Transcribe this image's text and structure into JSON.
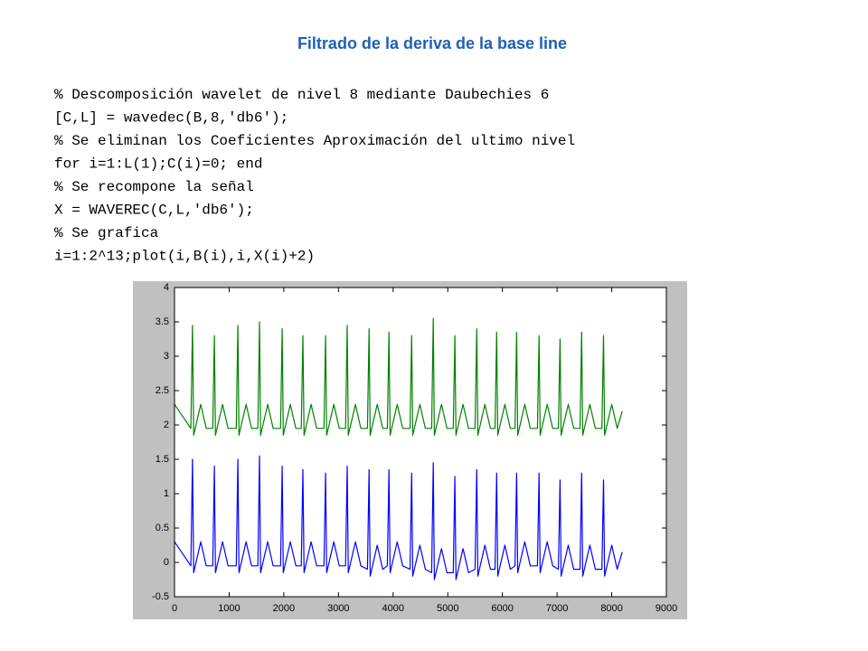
{
  "title": "Filtrado de la deriva de la base line",
  "code": [
    "% Descomposición wavelet de nivel 8 mediante Daubechies 6",
    "[C,L] = wavedec(B,8,'db6');",
    "% Se eliminan los Coeficientes Aproximación del ultimo nivel",
    "for i=1:L(1);C(i)=0; end",
    "% Se recompone la señal",
    "X = WAVEREC(C,L,'db6');",
    "% Se grafica",
    "i=1:2^13;plot(i,B(i),i,X(i)+2)"
  ],
  "chart_data": {
    "type": "line",
    "x": [
      0,
      300,
      330,
      350,
      480,
      580,
      700,
      730,
      750,
      880,
      980,
      1130,
      1160,
      1180,
      1310,
      1410,
      1525,
      1555,
      1575,
      1705,
      1805,
      1940,
      1970,
      1990,
      2120,
      2220,
      2320,
      2350,
      2370,
      2500,
      2600,
      2735,
      2765,
      2785,
      2915,
      3015,
      3130,
      3160,
      3180,
      3310,
      3410,
      3530,
      3560,
      3580,
      3710,
      3810,
      3895,
      3925,
      3945,
      4075,
      4175,
      4310,
      4340,
      4360,
      4490,
      4590,
      4705,
      4735,
      4755,
      4885,
      4985,
      5100,
      5130,
      5150,
      5280,
      5380,
      5500,
      5530,
      5550,
      5680,
      5780,
      5865,
      5895,
      5915,
      6045,
      6145,
      6230,
      6260,
      6280,
      6410,
      6510,
      6640,
      6670,
      6690,
      6820,
      6920,
      7025,
      7055,
      7075,
      7205,
      7305,
      7420,
      7450,
      7470,
      7600,
      7700,
      7820,
      7850,
      7870,
      8000,
      8100,
      8192
    ],
    "series": [
      {
        "color": "#008000",
        "values": [
          2.3,
          1.95,
          3.45,
          1.85,
          2.3,
          1.95,
          1.95,
          3.3,
          1.85,
          2.3,
          1.95,
          1.95,
          3.45,
          1.85,
          2.3,
          1.95,
          1.95,
          3.5,
          1.85,
          2.3,
          1.95,
          1.95,
          3.4,
          1.85,
          2.3,
          1.95,
          1.95,
          3.3,
          1.85,
          2.3,
          1.95,
          1.95,
          3.3,
          1.85,
          2.3,
          1.95,
          1.95,
          3.45,
          1.85,
          2.3,
          1.95,
          1.95,
          3.4,
          1.85,
          2.3,
          1.95,
          1.95,
          3.35,
          1.85,
          2.3,
          1.95,
          1.95,
          3.3,
          1.85,
          2.3,
          1.95,
          1.95,
          3.55,
          1.85,
          2.3,
          1.95,
          1.95,
          3.3,
          1.85,
          2.3,
          1.95,
          1.95,
          3.4,
          1.85,
          2.3,
          1.95,
          1.95,
          3.35,
          1.85,
          2.3,
          1.95,
          1.95,
          3.35,
          1.85,
          2.3,
          1.95,
          1.95,
          3.3,
          1.85,
          2.3,
          1.95,
          1.95,
          3.25,
          1.85,
          2.3,
          1.95,
          1.95,
          3.35,
          1.85,
          2.3,
          1.95,
          1.95,
          3.3,
          1.85,
          2.3,
          1.95,
          2.2
        ]
      },
      {
        "color": "#0000ff",
        "values": [
          0.3,
          -0.05,
          1.5,
          -0.15,
          0.3,
          -0.05,
          -0.05,
          1.4,
          -0.15,
          0.3,
          -0.05,
          -0.05,
          1.5,
          -0.15,
          0.3,
          -0.05,
          -0.05,
          1.55,
          -0.15,
          0.3,
          -0.05,
          -0.05,
          1.4,
          -0.15,
          0.3,
          -0.05,
          -0.05,
          1.35,
          -0.15,
          0.3,
          -0.05,
          -0.05,
          1.3,
          -0.15,
          0.3,
          -0.05,
          -0.05,
          1.4,
          -0.15,
          0.3,
          -0.05,
          -0.1,
          1.35,
          -0.2,
          0.25,
          -0.1,
          -0.05,
          1.35,
          -0.15,
          0.3,
          -0.05,
          -0.1,
          1.3,
          -0.2,
          0.25,
          -0.1,
          -0.15,
          1.45,
          -0.25,
          0.2,
          -0.15,
          -0.15,
          1.25,
          -0.25,
          0.2,
          -0.15,
          -0.1,
          1.35,
          -0.2,
          0.25,
          -0.1,
          -0.1,
          1.3,
          -0.2,
          0.25,
          -0.1,
          -0.05,
          1.3,
          -0.15,
          0.3,
          -0.05,
          -0.05,
          1.3,
          -0.15,
          0.3,
          -0.05,
          -0.1,
          1.2,
          -0.2,
          0.25,
          -0.1,
          -0.1,
          1.3,
          -0.2,
          0.25,
          -0.1,
          -0.1,
          1.2,
          -0.2,
          0.25,
          -0.1,
          0.15
        ]
      }
    ],
    "xlim": [
      0,
      9000
    ],
    "xticks": [
      0,
      1000,
      2000,
      3000,
      4000,
      5000,
      6000,
      7000,
      8000,
      9000
    ],
    "ylim": [
      -0.5,
      4
    ],
    "yticks": [
      -0.5,
      0,
      0.5,
      1,
      1.5,
      2,
      2.5,
      3,
      3.5,
      4
    ]
  }
}
